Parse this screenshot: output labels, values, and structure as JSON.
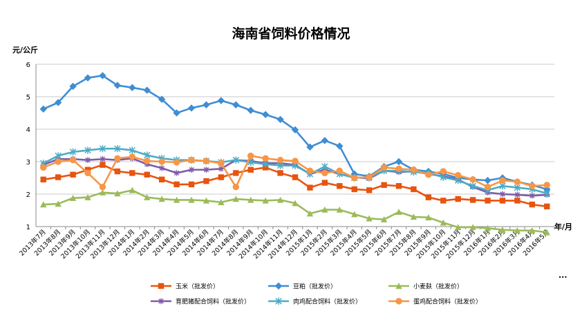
{
  "chart_data": {
    "type": "line",
    "title": "海南省饲料价格情况",
    "ylabel": "元/公斤",
    "xlabel": "年/月",
    "ylim": [
      1,
      6
    ],
    "yticks": [
      "1",
      "2",
      "3",
      "4",
      "5",
      "6"
    ],
    "grid": true,
    "legend_position": "bottom",
    "more_indicator": "...",
    "categories": [
      "2013年7月",
      "2013年8月",
      "2013年9月",
      "2013年10月",
      "2013年11月",
      "2013年12月",
      "2014年1月",
      "2014年2月",
      "2014年3月",
      "2014年4月",
      "2014年5月",
      "2014年6月",
      "2014年7月",
      "2014年8月",
      "2014年9月",
      "2014年10月",
      "2014年11月",
      "2014年12月",
      "2015年1月",
      "2015年2月",
      "2015年3月",
      "2015年4月",
      "2015年5月",
      "2015年6月",
      "2015年7月",
      "2015年8月",
      "2015年9月",
      "2015年10月",
      "2015年11月",
      "2015年12月",
      "2016年1月",
      "2016年2月",
      "2016年3月",
      "2016年4月",
      "2016年5月"
    ],
    "series": [
      {
        "name": "玉米（批发价）",
        "color": "#E8540F",
        "marker": "square",
        "values": [
          2.45,
          2.52,
          2.6,
          2.75,
          2.9,
          2.7,
          2.65,
          2.6,
          2.45,
          2.3,
          2.3,
          2.4,
          2.52,
          2.65,
          2.75,
          2.82,
          2.65,
          2.52,
          2.2,
          2.35,
          2.25,
          2.15,
          2.12,
          2.28,
          2.25,
          2.15,
          1.9,
          1.8,
          1.85,
          1.82,
          1.8,
          1.8,
          1.8,
          1.68,
          1.62
        ]
      },
      {
        "name": "豆粕（批发价）",
        "color": "#3F8DD3",
        "marker": "diamond",
        "values": [
          4.62,
          4.82,
          5.32,
          5.58,
          5.65,
          5.35,
          5.28,
          5.2,
          4.92,
          4.5,
          4.65,
          4.75,
          4.88,
          4.75,
          4.58,
          4.45,
          4.3,
          3.98,
          3.45,
          3.65,
          3.48,
          2.62,
          2.55,
          2.85,
          3.0,
          2.75,
          2.7,
          2.62,
          2.5,
          2.45,
          2.42,
          2.5,
          2.38,
          2.28,
          2.15
        ]
      },
      {
        "name": "小麦麸（批发价）",
        "color": "#9BBB59",
        "marker": "triangle",
        "values": [
          1.68,
          1.7,
          1.88,
          1.9,
          2.05,
          2.02,
          2.12,
          1.9,
          1.85,
          1.82,
          1.82,
          1.8,
          1.75,
          1.85,
          1.82,
          1.8,
          1.82,
          1.72,
          1.4,
          1.52,
          1.52,
          1.38,
          1.25,
          1.22,
          1.45,
          1.3,
          1.28,
          1.12,
          0.98,
          0.98,
          0.95,
          0.9,
          0.88,
          0.88,
          0.82
        ]
      },
      {
        "name": "育肥猪配合饲料（批发价）",
        "color": "#7E5BA8",
        "marker": "star",
        "values": [
          2.9,
          3.08,
          3.08,
          3.05,
          3.08,
          3.05,
          3.1,
          2.92,
          2.8,
          2.65,
          2.75,
          2.75,
          2.78,
          3.05,
          3.02,
          2.95,
          2.95,
          2.9,
          2.62,
          2.75,
          2.62,
          2.52,
          2.48,
          2.72,
          2.68,
          2.7,
          2.62,
          2.55,
          2.45,
          2.22,
          2.05,
          2.0,
          1.98,
          1.95,
          1.98
        ]
      },
      {
        "name": "肉鸡配合饲料（批发价）",
        "color": "#4BACC6",
        "marker": "x",
        "values": [
          2.95,
          3.18,
          3.3,
          3.35,
          3.4,
          3.4,
          3.35,
          3.2,
          3.1,
          3.05,
          3.05,
          3.02,
          2.98,
          3.05,
          2.98,
          2.92,
          2.88,
          2.88,
          2.62,
          2.85,
          2.62,
          2.5,
          2.52,
          2.72,
          2.72,
          2.68,
          2.65,
          2.52,
          2.42,
          2.25,
          2.12,
          2.25,
          2.2,
          2.15,
          2.02
        ]
      },
      {
        "name": "蛋鸡配合饲料（批发价）",
        "color": "#F79646",
        "marker": "circle",
        "values": [
          2.82,
          3.0,
          3.05,
          2.65,
          2.22,
          3.1,
          3.15,
          3.02,
          3.0,
          2.98,
          3.05,
          3.02,
          2.95,
          2.22,
          3.18,
          3.1,
          3.05,
          3.02,
          2.72,
          2.65,
          2.72,
          2.5,
          2.52,
          2.82,
          2.78,
          2.75,
          2.6,
          2.7,
          2.58,
          2.45,
          2.22,
          2.42,
          2.38,
          2.25,
          2.28
        ]
      }
    ]
  }
}
